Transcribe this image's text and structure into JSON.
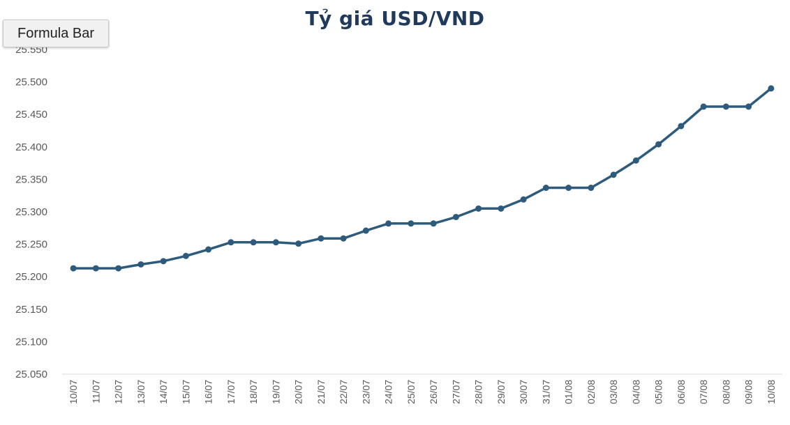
{
  "toolbar": {
    "formula_bar_label": "Formula Bar"
  },
  "chart_data": {
    "type": "line",
    "title": "Tỷ giá USD/VND",
    "xlabel": "",
    "ylabel": "",
    "ylim": [
      25050,
      25550
    ],
    "yticks": [
      25050,
      25100,
      25150,
      25200,
      25250,
      25300,
      25350,
      25400,
      25450,
      25500,
      25550
    ],
    "ytick_labels": [
      "25.050",
      "25.100",
      "25.150",
      "25.200",
      "25.250",
      "25.300",
      "25.350",
      "25.400",
      "25.450",
      "25.500",
      "25.550"
    ],
    "grid": false,
    "legend": "none",
    "color": "#2e5b7b",
    "categories": [
      "10/07",
      "11/07",
      "12/07",
      "13/07",
      "14/07",
      "15/07",
      "16/07",
      "17/07",
      "18/07",
      "19/07",
      "20/07",
      "21/07",
      "22/07",
      "23/07",
      "24/07",
      "25/07",
      "26/07",
      "27/07",
      "28/07",
      "29/07",
      "30/07",
      "31/07",
      "01/08",
      "02/08",
      "03/08",
      "04/08",
      "05/08",
      "06/08",
      "07/08",
      "08/08",
      "09/08",
      "10/08"
    ],
    "values": [
      25213,
      25213,
      25213,
      25219,
      25224,
      25232,
      25242,
      25253,
      25253,
      25253,
      25251,
      25259,
      25259,
      25271,
      25282,
      25282,
      25282,
      25292,
      25305,
      25305,
      25319,
      25337,
      25337,
      25337,
      25357,
      25379,
      25404,
      25432,
      25462,
      25462,
      25462,
      25490
    ]
  }
}
